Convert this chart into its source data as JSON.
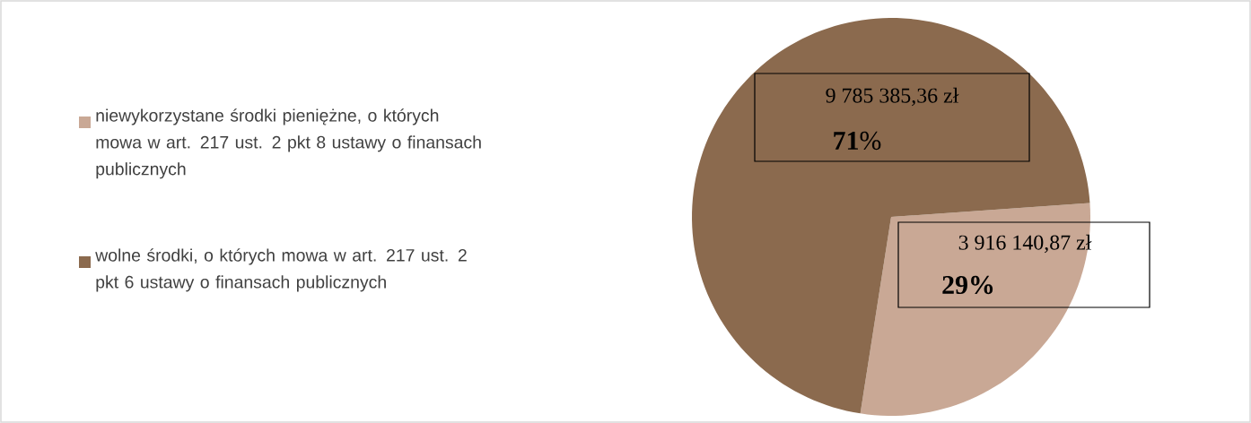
{
  "chart_data": {
    "type": "pie",
    "categories": [
      "niewykorzystane środki pieniężne, o których mowa w art. 217 ust. 2 pkt 8 ustawy o finansach publicznych",
      "wolne środki, o których mowa w art. 217 ust. 2 pkt 6 ustawy o finansach publicznych"
    ],
    "values": [
      3916140.87,
      9785385.36
    ],
    "colors": [
      "#c9a895",
      "#8b6a4e"
    ],
    "value_labels": [
      "3 916 140,87 zł",
      "9 785 385,36 zł"
    ],
    "annotations": [
      "29%",
      "**71**%"
    ],
    "legend": "left"
  }
}
